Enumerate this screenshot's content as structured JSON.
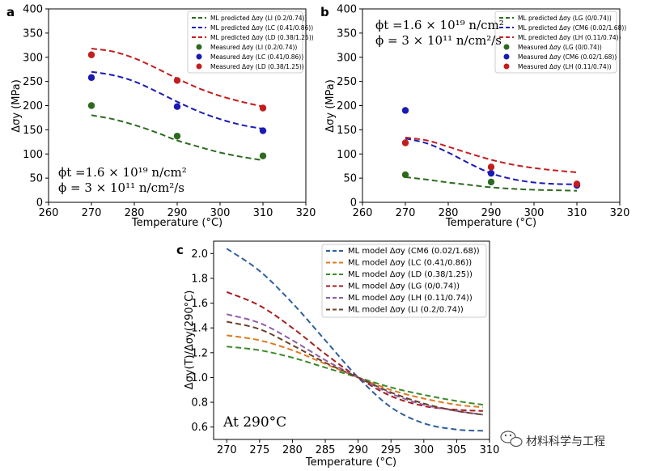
{
  "chart_data": [
    {
      "panel": "a",
      "type": "line",
      "xlabel": "Temperature (°C)",
      "ylabel": "Δσy (MPa)",
      "xlim": [
        260,
        320
      ],
      "ylim": [
        0,
        400
      ],
      "xticks": [
        "260",
        "270",
        "280",
        "290",
        "300",
        "310",
        "320"
      ],
      "yticks": [
        "0",
        "50",
        "100",
        "150",
        "200",
        "250",
        "300",
        "350",
        "400"
      ],
      "legend_position": "top-right",
      "series": [
        {
          "name": "ML predicted Δσy (LI (0.2/0.74))",
          "kind": "line",
          "color": "#2d6a1e",
          "x": [
            270,
            275,
            280,
            285,
            290,
            295,
            300,
            305,
            310
          ],
          "y": [
            180,
            172,
            160,
            145,
            128,
            115,
            103,
            94,
            87
          ]
        },
        {
          "name": "ML predicted Δσy (LC (0.41/0.86))",
          "kind": "line",
          "color": "#1a1ab4",
          "x": [
            270,
            275,
            280,
            285,
            290,
            295,
            300,
            305,
            310
          ],
          "y": [
            270,
            263,
            250,
            230,
            208,
            188,
            172,
            160,
            152
          ]
        },
        {
          "name": "ML predicted Δσy (LD (0.38/1.25))",
          "kind": "line",
          "color": "#c41d1d",
          "x": [
            270,
            275,
            280,
            285,
            290,
            295,
            300,
            305,
            310
          ],
          "y": [
            318,
            312,
            298,
            278,
            256,
            236,
            220,
            208,
            198
          ]
        },
        {
          "name": "Measured Δσy (LI (0.2/0.74))",
          "kind": "scatter",
          "color": "#2d6a1e",
          "x": [
            270,
            290,
            310
          ],
          "y": [
            200,
            137,
            96
          ]
        },
        {
          "name": "Measured Δσy (LC (0.41/0.86))",
          "kind": "scatter",
          "color": "#1a1ab4",
          "x": [
            270,
            290,
            310
          ],
          "y": [
            258,
            198,
            148
          ]
        },
        {
          "name": "Measured Δσy (LD (0.38/1.25))",
          "kind": "scatter",
          "color": "#c41d1d",
          "x": [
            270,
            290,
            310
          ],
          "y": [
            305,
            252,
            195
          ]
        }
      ],
      "annotations": [
        "ϕt =1.6 × 10¹⁹ n/cm²",
        "ϕ = 3 × 10¹¹ n/cm²/s"
      ]
    },
    {
      "panel": "b",
      "type": "line",
      "xlabel": "Temperature (°C)",
      "ylabel": "Δσy (MPa)",
      "xlim": [
        260,
        320
      ],
      "ylim": [
        0,
        400
      ],
      "xticks": [
        "260",
        "270",
        "280",
        "290",
        "300",
        "310",
        "320"
      ],
      "yticks": [
        "0",
        "50",
        "100",
        "150",
        "200",
        "250",
        "300",
        "350",
        "400"
      ],
      "legend_position": "top-right",
      "series": [
        {
          "name": "ML predicted Δσy (LG (0/0.74))",
          "kind": "line",
          "color": "#2d6a1e",
          "x": [
            270,
            275,
            280,
            285,
            290,
            295,
            300,
            305,
            310
          ],
          "y": [
            52,
            47,
            41,
            36,
            31,
            28,
            26,
            25,
            24
          ]
        },
        {
          "name": "ML predicted Δσy (CM6 (0.02/1.68))",
          "kind": "line",
          "color": "#1a1ab4",
          "x": [
            270,
            275,
            280,
            285,
            290,
            295,
            300,
            305,
            310
          ],
          "y": [
            132,
            122,
            103,
            80,
            60,
            48,
            41,
            38,
            37
          ]
        },
        {
          "name": "ML predicted Δσy (LH (0.11/0.74))",
          "kind": "line",
          "color": "#c41d1d",
          "x": [
            270,
            275,
            280,
            285,
            290,
            295,
            300,
            305,
            310
          ],
          "y": [
            134,
            128,
            115,
            101,
            88,
            78,
            71,
            66,
            62
          ]
        },
        {
          "name": "Measured Δσy (LG (0/0.74))",
          "kind": "scatter",
          "color": "#2d6a1e",
          "x": [
            270,
            290
          ],
          "y": [
            57,
            42
          ]
        },
        {
          "name": "Measured Δσy (CM6 (0.02/1.68))",
          "kind": "scatter",
          "color": "#1a1ab4",
          "x": [
            270,
            290,
            310
          ],
          "y": [
            190,
            60,
            35
          ]
        },
        {
          "name": "Measured Δσy (LH (0.11/0.74))",
          "kind": "scatter",
          "color": "#c41d1d",
          "x": [
            270,
            290,
            310
          ],
          "y": [
            123,
            73,
            38
          ]
        }
      ],
      "annotations": [
        "ϕt =1.6 × 10¹⁹ n/cm²",
        "ϕ = 3 × 10¹¹ n/cm²/s"
      ]
    },
    {
      "panel": "c",
      "type": "line",
      "xlabel": "Temperature (°C)",
      "ylabel": "Δσy(T)/Δσy(290°C)",
      "xlim": [
        268,
        310
      ],
      "ylim": [
        0.5,
        2.1
      ],
      "xticks": [
        "270",
        "275",
        "280",
        "285",
        "290",
        "295",
        "300",
        "305",
        "310"
      ],
      "yticks": [
        "0.6",
        "0.8",
        "1.0",
        "1.2",
        "1.4",
        "1.6",
        "1.8",
        "2.0"
      ],
      "legend_position": "top-right",
      "series": [
        {
          "name": "ML model Δσy (CM6 (0.02/1.68))",
          "kind": "line",
          "color": "#2e5f9e",
          "x": [
            270,
            275,
            280,
            285,
            290,
            295,
            300,
            305,
            309
          ],
          "y": [
            2.04,
            1.86,
            1.6,
            1.3,
            1.0,
            0.76,
            0.63,
            0.58,
            0.57
          ]
        },
        {
          "name": "ML model Δσy (LC (0.41/0.86))",
          "kind": "line",
          "color": "#e07a1f",
          "x": [
            270,
            275,
            280,
            285,
            290,
            295,
            300,
            305,
            309
          ],
          "y": [
            1.34,
            1.3,
            1.22,
            1.11,
            1.0,
            0.9,
            0.83,
            0.78,
            0.76
          ]
        },
        {
          "name": "ML model Δσy (LD (0.38/1.25))",
          "kind": "line",
          "color": "#3a8a2a",
          "x": [
            270,
            275,
            280,
            285,
            290,
            295,
            300,
            305,
            309
          ],
          "y": [
            1.25,
            1.22,
            1.16,
            1.08,
            1.0,
            0.92,
            0.86,
            0.81,
            0.78
          ]
        },
        {
          "name": "ML model Δσy (LG (0/0.74))",
          "kind": "line",
          "color": "#a31f1f",
          "x": [
            270,
            275,
            280,
            285,
            290,
            295,
            300,
            305,
            309
          ],
          "y": [
            1.69,
            1.58,
            1.4,
            1.19,
            1.0,
            0.85,
            0.77,
            0.74,
            0.73
          ]
        },
        {
          "name": "ML model Δσy (LH (0.11/0.74))",
          "kind": "line",
          "color": "#8e5fa8",
          "x": [
            270,
            275,
            280,
            285,
            290,
            295,
            300,
            305,
            309
          ],
          "y": [
            1.51,
            1.44,
            1.3,
            1.14,
            1.0,
            0.87,
            0.78,
            0.73,
            0.7
          ]
        },
        {
          "name": "ML model Δσy (LI (0.2/0.74))",
          "kind": "line",
          "color": "#6b4229",
          "x": [
            270,
            275,
            280,
            285,
            290,
            295,
            300,
            305,
            309
          ],
          "y": [
            1.45,
            1.39,
            1.26,
            1.12,
            1.0,
            0.88,
            0.79,
            0.73,
            0.7
          ]
        }
      ],
      "annotations": [
        "At 290°C"
      ]
    }
  ],
  "watermark": "材料科学与工程"
}
